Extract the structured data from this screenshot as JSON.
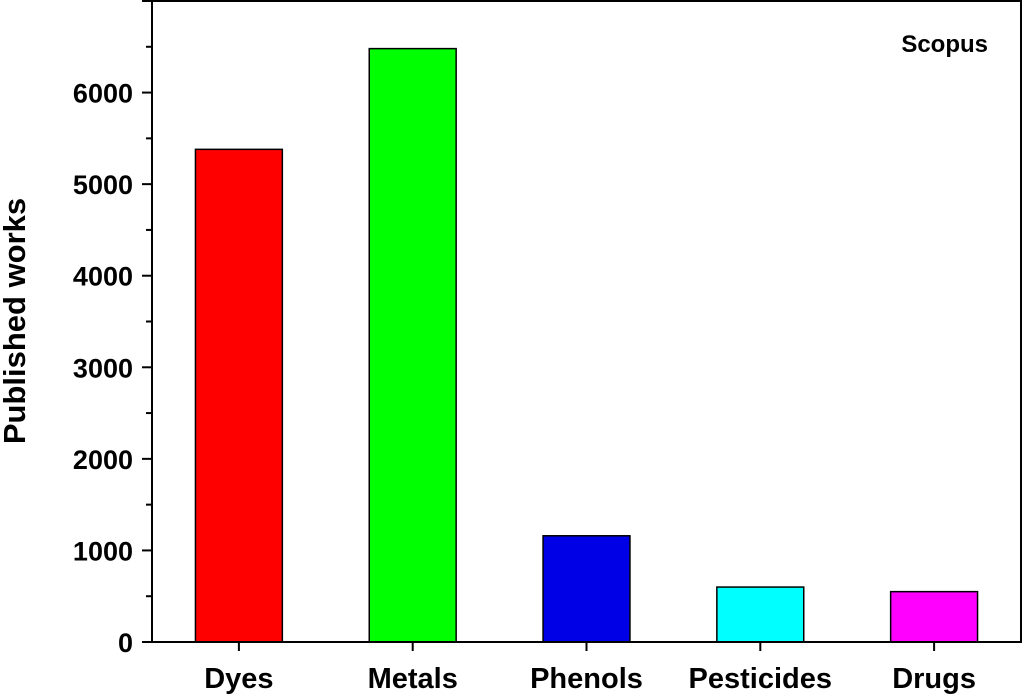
{
  "chart_data": {
    "type": "bar",
    "categories": [
      "Dyes",
      "Metals",
      "Phenols",
      "Pesticides",
      "Drugs"
    ],
    "values": [
      5380,
      6480,
      1160,
      600,
      550
    ],
    "colors": [
      "#ff0000",
      "#00ff00",
      "#0000e6",
      "#00ffff",
      "#ff00ff"
    ],
    "xlabel": "",
    "ylabel": "Published works",
    "annotation": "Scopus",
    "ylim": [
      0,
      7000
    ],
    "yticks": [
      0,
      1000,
      2000,
      3000,
      4000,
      5000,
      6000
    ],
    "grid": false,
    "legend": "none"
  }
}
